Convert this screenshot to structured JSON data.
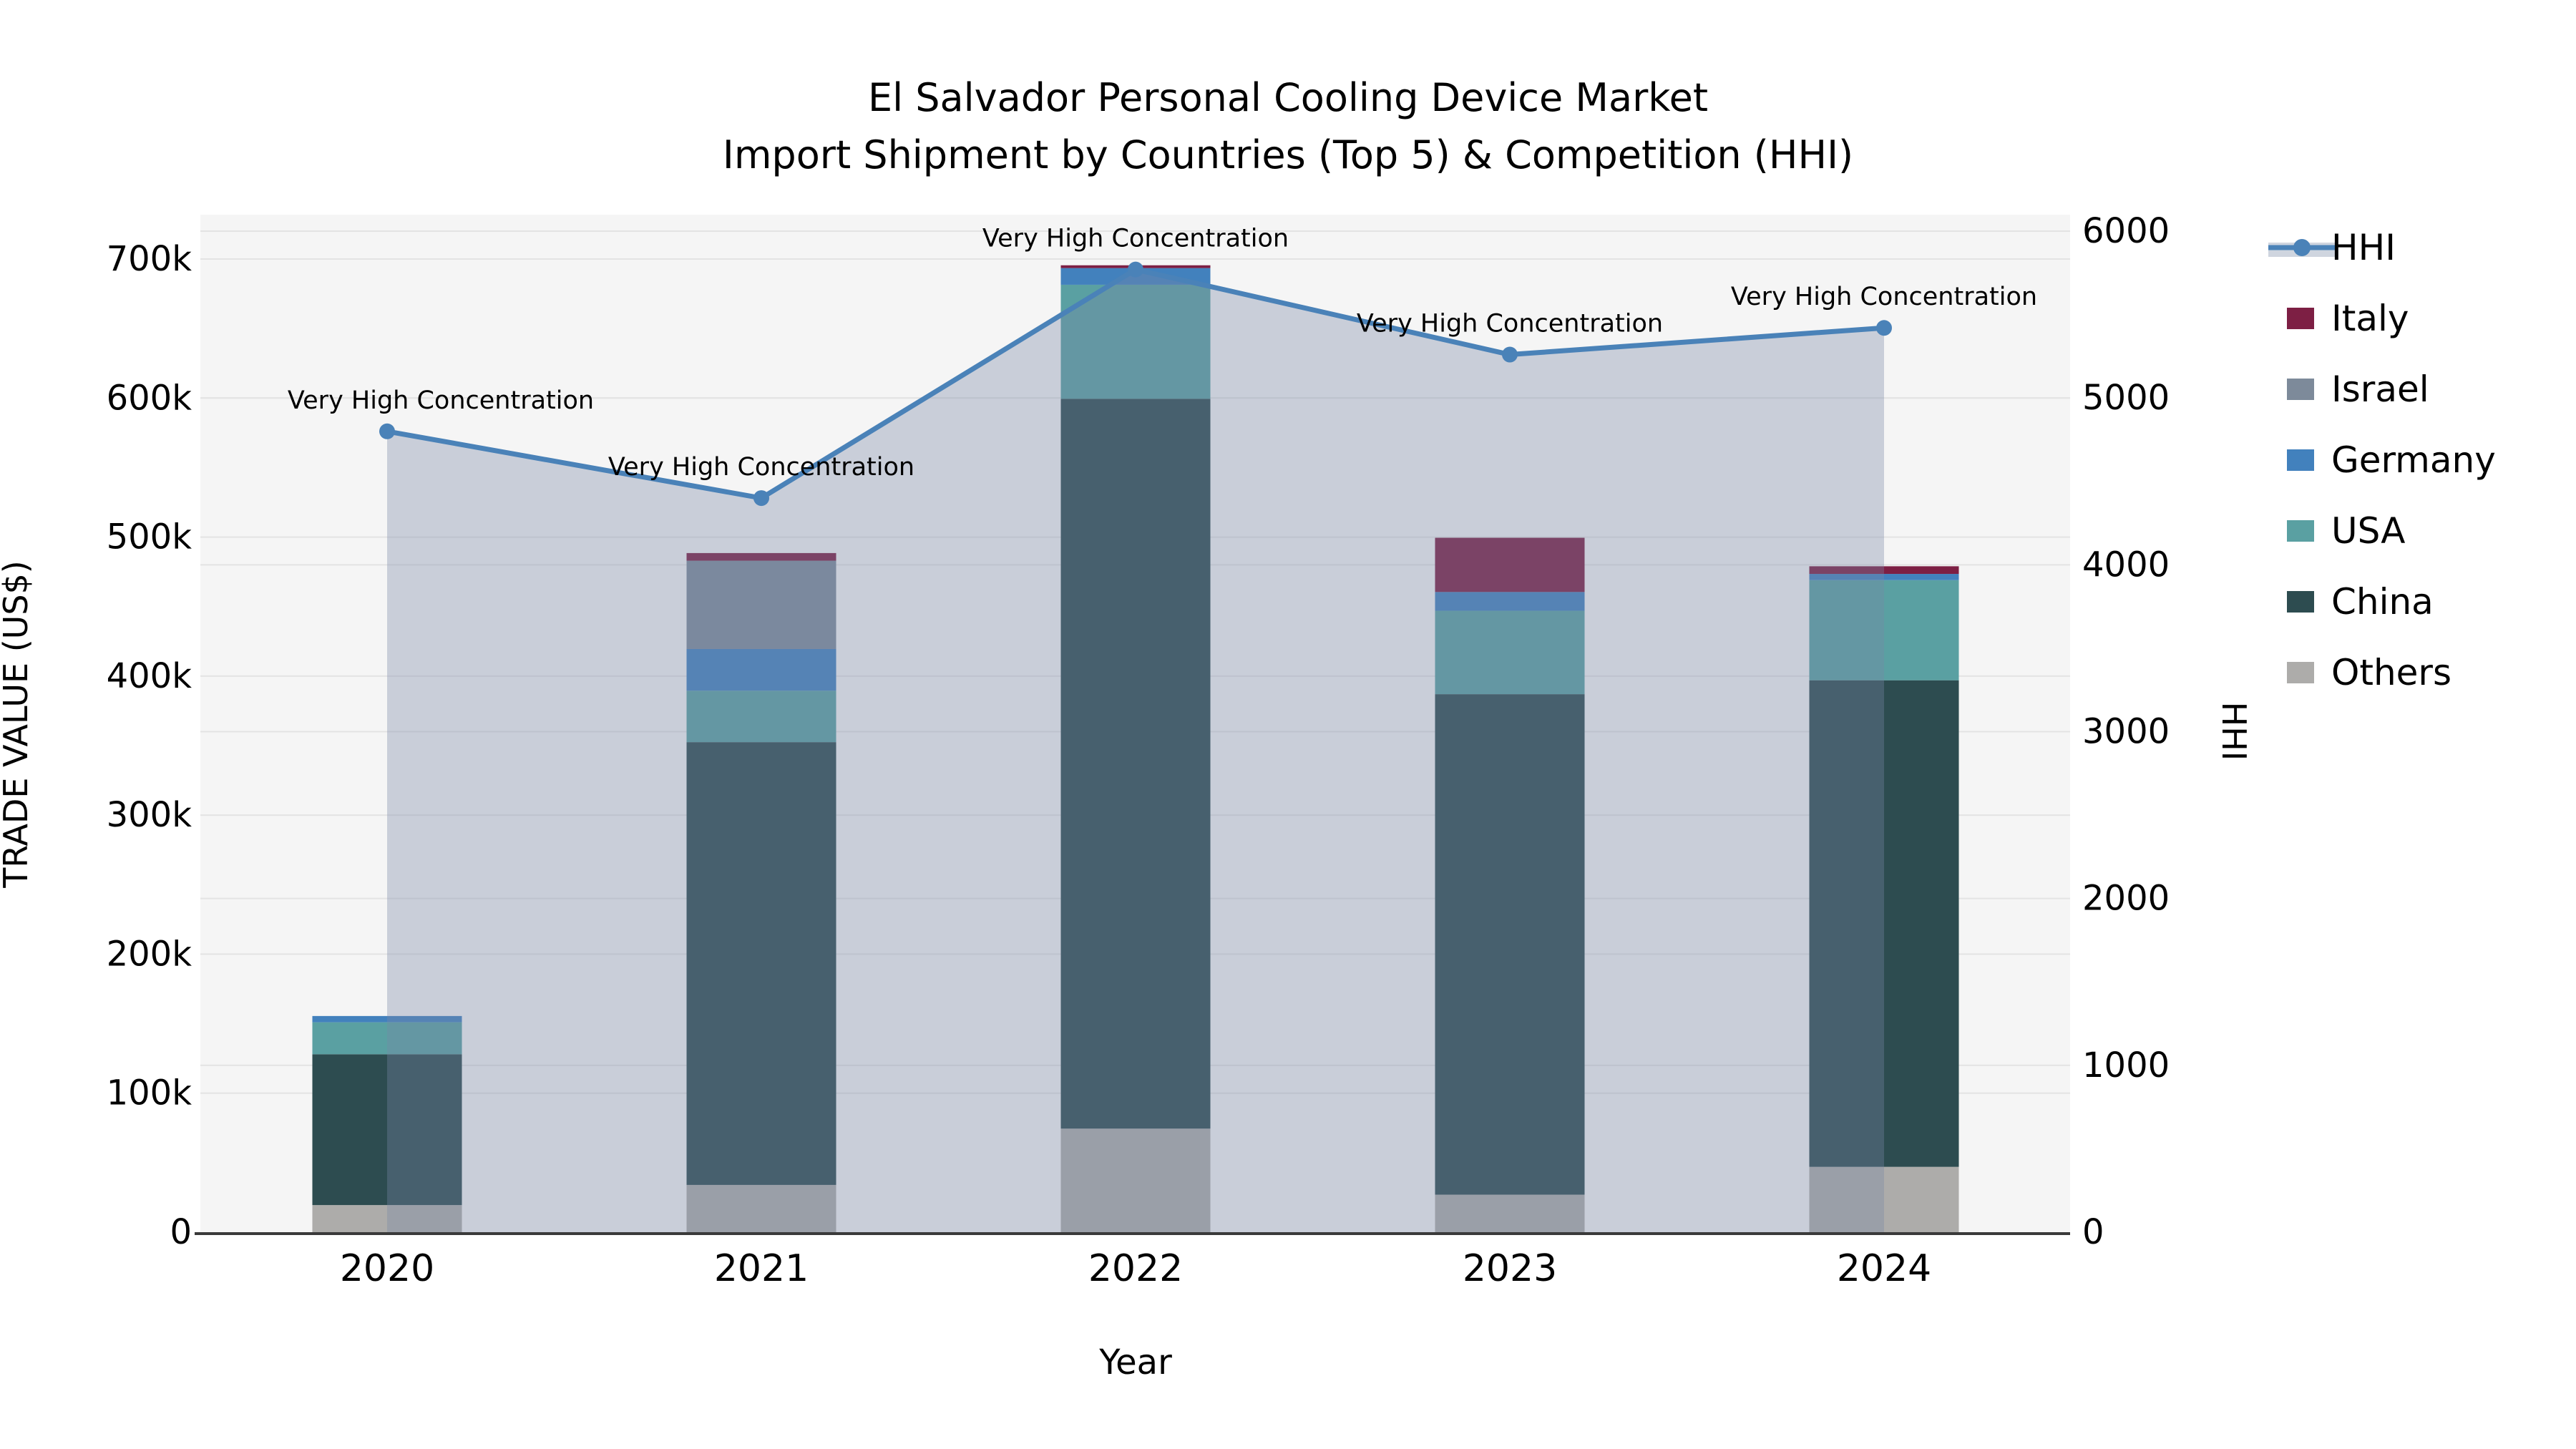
{
  "title": {
    "line1": "El Salvador Personal Cooling Device Market",
    "line2": "Import Shipment by Countries (Top 5) & Competition (HHI)"
  },
  "chart_data": {
    "type": "combo-stacked-bar-line",
    "categories": [
      "2020",
      "2021",
      "2022",
      "2023",
      "2024"
    ],
    "bar_series": [
      {
        "name": "Others",
        "color": "#adacaa",
        "values": [
          19500,
          34000,
          74500,
          27000,
          47000
        ]
      },
      {
        "name": "China",
        "color": "#2d4c50",
        "values": [
          108500,
          318500,
          525000,
          360000,
          350000
        ]
      },
      {
        "name": "USA",
        "color": "#5aa0a2",
        "values": [
          23000,
          37000,
          82000,
          60000,
          72000
        ]
      },
      {
        "name": "Germany",
        "color": "#4281bd",
        "values": [
          4500,
          30000,
          12000,
          13500,
          4500
        ]
      },
      {
        "name": "Israel",
        "color": "#7d8a9a",
        "values": [
          0,
          63500,
          0,
          0,
          0
        ]
      },
      {
        "name": "Italy",
        "color": "#7d1f44",
        "values": [
          0,
          5500,
          2000,
          39000,
          5500
        ]
      }
    ],
    "bar_totals": [
      155500,
      488500,
      695500,
      499500,
      479000
    ],
    "line_series": {
      "name": "HHI",
      "color": "#4a82b8",
      "area_fill": "rgba(120,135,165,0.35)",
      "values": [
        4800,
        4400,
        5770,
        5260,
        5420
      ]
    },
    "annotations": [
      "Very High Concentration",
      "Very High Concentration",
      "Very High Concentration",
      "Very High Concentration",
      "Very High Concentration"
    ],
    "xlabel": "Year",
    "ylabel_left": "TRADE VALUE (US$)",
    "ylabel_right": "HHI",
    "yaxis_left": {
      "min": 0,
      "max": 700000,
      "step": 100000
    },
    "yaxis_right": {
      "min": 0,
      "max": 6000,
      "step": 1000
    },
    "left_ticks": [
      "0",
      "100k",
      "200k",
      "300k",
      "400k",
      "500k",
      "600k",
      "700k"
    ],
    "right_ticks": [
      "0",
      "1000",
      "2000",
      "3000",
      "4000",
      "5000",
      "6000"
    ],
    "grid": true,
    "legend_position": "right"
  },
  "legend": {
    "items": [
      {
        "label": "HHI",
        "type": "line",
        "color": "#4a82b8",
        "band_color": "#cfd5df"
      },
      {
        "label": "Italy",
        "type": "swatch",
        "color": "#7d1f44"
      },
      {
        "label": "Israel",
        "type": "swatch",
        "color": "#7d8a9a"
      },
      {
        "label": "Germany",
        "type": "swatch",
        "color": "#4281bd"
      },
      {
        "label": "USA",
        "type": "swatch",
        "color": "#5aa0a2"
      },
      {
        "label": "China",
        "type": "swatch",
        "color": "#2d4c50"
      },
      {
        "label": "Others",
        "type": "swatch",
        "color": "#adacaa"
      }
    ]
  },
  "colors": {
    "page_bg": "#ffffff",
    "plot_bg": "#f5f5f5",
    "gridline": "#e3e3e3",
    "axis_line": "#3a3a3a",
    "text": "#000000"
  }
}
